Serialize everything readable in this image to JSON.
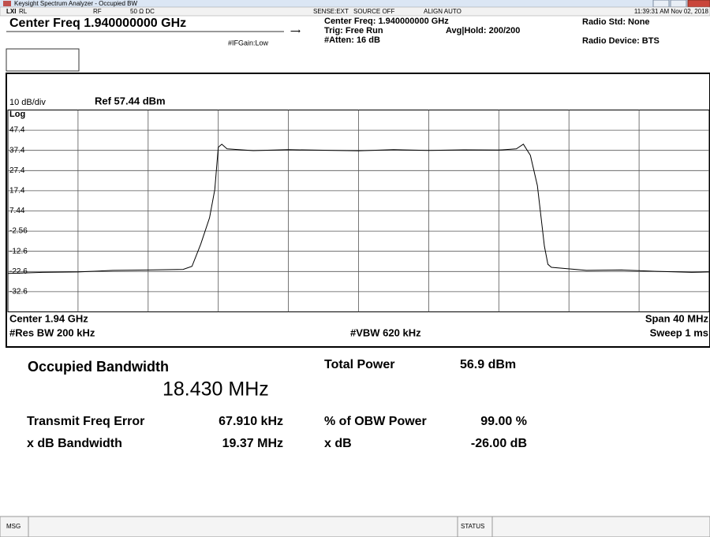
{
  "window": {
    "title": "Keysight Spectrum Analyzer - Occupied BW"
  },
  "status_bar": {
    "rl": "RL",
    "rf": "RF",
    "impedance": "50 Ω  DC",
    "sense": "SENSE:EXT",
    "source": "SOURCE OFF",
    "align": "ALIGN AUTO",
    "time": "11:39:31 AM Nov 02, 2018"
  },
  "header": {
    "center_freq": "Center Freq 1.940000000 GHz",
    "center_freq_info": "Center Freq: 1.940000000 GHz",
    "trig": "Trig: Free Run",
    "atten": "#Atten: 16 dB",
    "avg_hold": "Avg|Hold: 200/200",
    "if_gain": "#IFGain:Low",
    "radio_std": "Radio Std: None",
    "radio_device": "Radio Device: BTS"
  },
  "trace_info": {
    "scale": "10 dB/div",
    "ref": "Ref 57.44 dBm",
    "log": "Log",
    "center": "Center 1.94 GHz",
    "span": "Span 40 MHz",
    "res_bw": "#Res BW 200 kHz",
    "vbw": "#VBW 620 kHz",
    "sweep": "Sweep 1 ms"
  },
  "chart_data": {
    "type": "line",
    "color": "#000000",
    "grid": true,
    "xlim": [
      1.92,
      1.96
    ],
    "ylim": [
      -42.56,
      57.44
    ],
    "yticks": [
      {
        "value": 47.44,
        "label": "47.4"
      },
      {
        "value": 37.44,
        "label": "37.4"
      },
      {
        "value": 27.44,
        "label": "27.4"
      },
      {
        "value": 17.44,
        "label": "17.4"
      },
      7.44,
      -2.56,
      {
        "value": -12.56,
        "label": "-12.6"
      },
      {
        "value": -22.56,
        "label": "-22.6"
      },
      {
        "value": -32.56,
        "label": "-32.6"
      }
    ],
    "x": [
      1.92,
      1.922,
      1.924,
      1.926,
      1.928,
      1.93,
      1.9305,
      1.931,
      1.9315,
      1.9318,
      1.932,
      1.9322,
      1.9325,
      1.934,
      1.936,
      1.938,
      1.94,
      1.942,
      1.944,
      1.946,
      1.948,
      1.949,
      1.9494,
      1.9498,
      1.9502,
      1.9504,
      1.9506,
      1.9508,
      1.951,
      1.953,
      1.955,
      1.957,
      1.959,
      1.96
    ],
    "values": [
      -23.5,
      -23.0,
      -22.8,
      -22.0,
      -21.8,
      -21.5,
      -20,
      -9,
      4,
      18,
      39,
      40.5,
      38.2,
      37.3,
      37.8,
      37.5,
      37.2,
      37.8,
      37.4,
      37.7,
      37.6,
      38.2,
      40.5,
      35,
      20,
      5,
      -10,
      -19,
      -20.5,
      -22.0,
      -21.8,
      -22.5,
      -23.0,
      -22.8
    ]
  },
  "results": {
    "obw_label": "Occupied Bandwidth",
    "obw_value": "18.430 MHz",
    "total_power_label": "Total Power",
    "total_power_value": "56.9 dBm",
    "freq_error_label": "Transmit Freq Error",
    "freq_error_value": "67.910 kHz",
    "obw_power_label": "% of OBW Power",
    "obw_power_value": "99.00 %",
    "xdb_bw_label": "x dB Bandwidth",
    "xdb_bw_value": "19.37 MHz",
    "xdb_label": "x dB",
    "xdb_value": "-26.00 dB"
  },
  "footer": {
    "msg": "MSG",
    "status": "STATUS"
  }
}
